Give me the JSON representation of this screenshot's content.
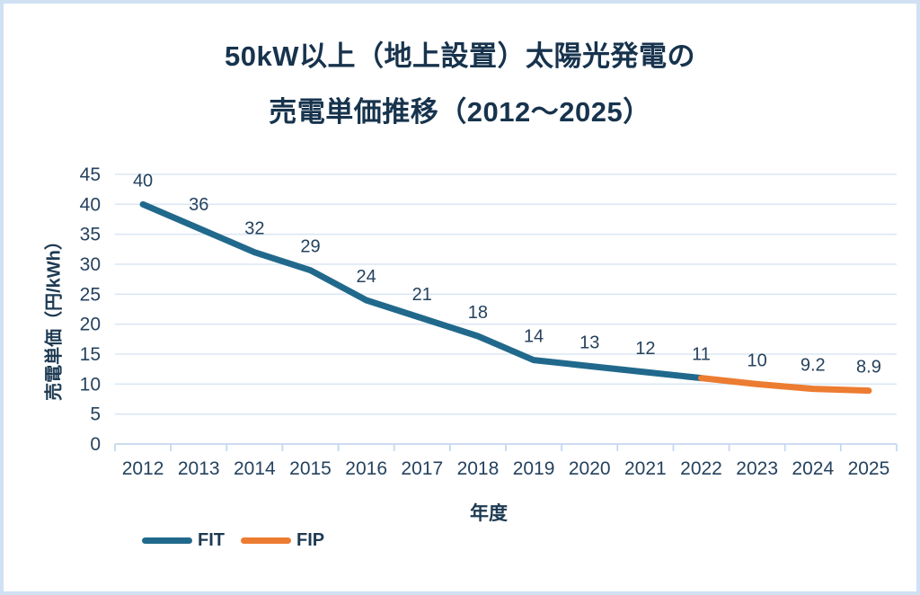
{
  "title": {
    "line1": "50kW以上（地上設置）太陽光発電の",
    "line2": "売電単価推移（2012～2025）"
  },
  "chart_data": {
    "type": "line",
    "title": "50kW以上（地上設置）太陽光発電の売電単価推移（2012～2025）",
    "xlabel": "年度",
    "ylabel": "売電単価（円/kWh）",
    "categories": [
      "2012",
      "2013",
      "2014",
      "2015",
      "2016",
      "2017",
      "2018",
      "2019",
      "2020",
      "2021",
      "2022",
      "2023",
      "2024",
      "2025"
    ],
    "series": [
      {
        "name": "FIT",
        "color": "#21698c",
        "values": [
          40,
          36,
          32,
          29,
          24,
          21,
          18,
          14,
          13,
          12,
          11,
          null,
          null,
          null
        ]
      },
      {
        "name": "FIP",
        "color": "#ec7c31",
        "values": [
          null,
          null,
          null,
          null,
          null,
          null,
          null,
          null,
          null,
          null,
          11,
          10,
          9.2,
          8.9
        ]
      }
    ],
    "data_labels": [
      "40",
      "36",
      "32",
      "29",
      "24",
      "21",
      "18",
      "14",
      "13",
      "12",
      "11",
      "10",
      "9.2",
      "8.9"
    ],
    "y_ticks": [
      0,
      5,
      10,
      15,
      20,
      25,
      30,
      35,
      40,
      45
    ],
    "ylim": [
      0,
      45
    ],
    "grid": true,
    "legend_position": "bottom-left"
  },
  "colors": {
    "fit_line": "#21698c",
    "fip_line": "#ec7c31",
    "title_text": "#17334d",
    "label_text": "#25425e",
    "gridline": "#dbe7f4",
    "axis_line": "#c5d8ee",
    "frame_border": "#cfe1f3",
    "background": "#ffffff"
  }
}
